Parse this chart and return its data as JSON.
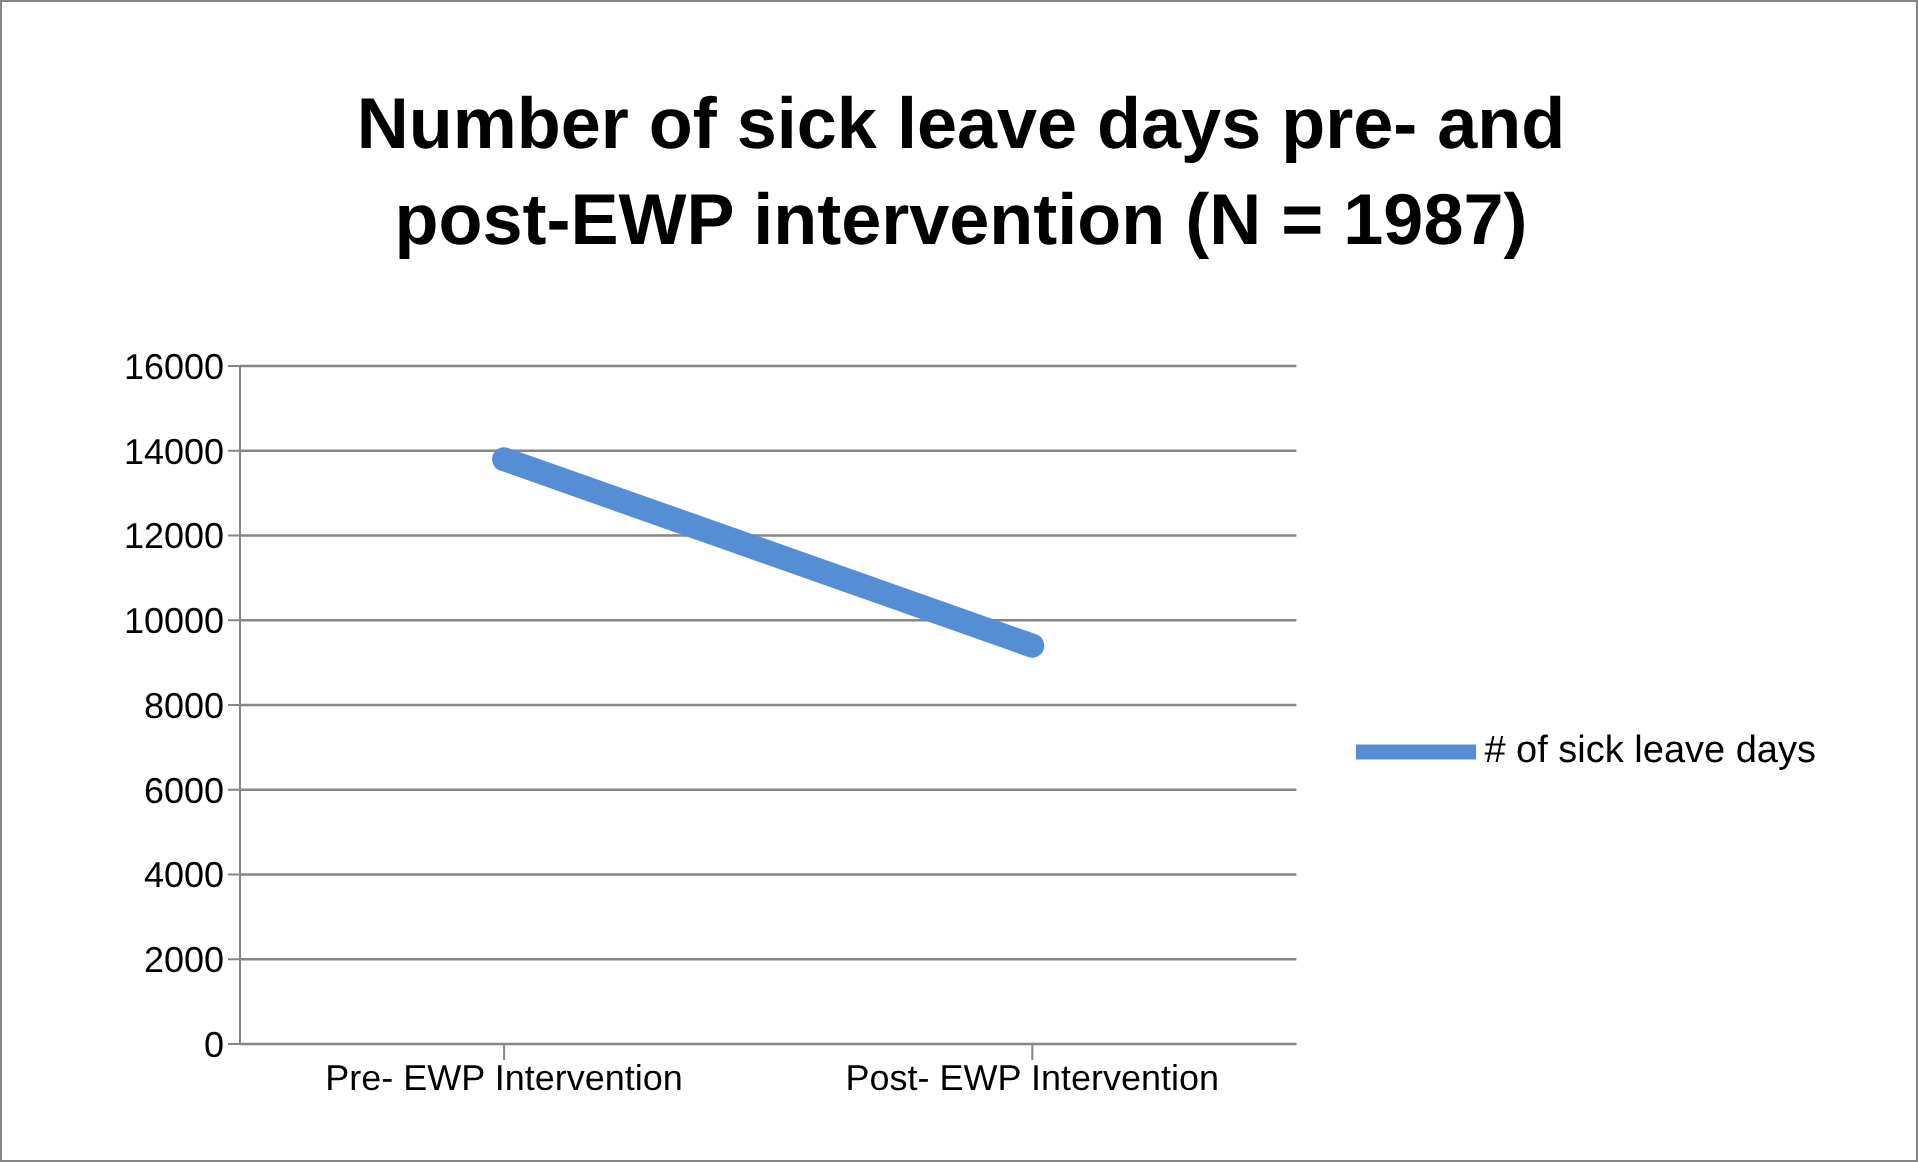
{
  "chart_data": {
    "type": "line",
    "title": "Number of sick leave days pre- and post-EWP intervention (N = 1987)",
    "categories": [
      "Pre- EWP Intervention",
      "Post- EWP Intervention"
    ],
    "series": [
      {
        "name": "# of sick leave days",
        "color": "#558ed5",
        "values": [
          13800,
          9400
        ]
      }
    ],
    "ylim": [
      0,
      16000
    ],
    "yticks": [
      0,
      2000,
      4000,
      6000,
      8000,
      10000,
      12000,
      14000,
      16000
    ],
    "grid": "y",
    "legend": "right",
    "marker": "none",
    "line_style": "solid"
  }
}
